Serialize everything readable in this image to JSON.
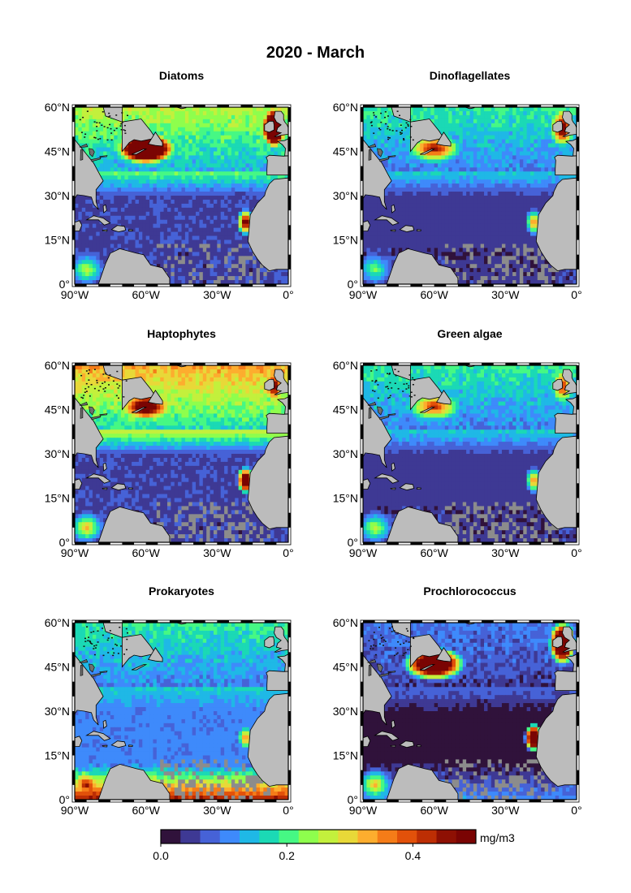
{
  "title": "2020 - March",
  "panels": [
    {
      "name": "Diatoms",
      "bloom": {
        "nw": 1.0,
        "ne": 1.0,
        "mid": 0.22,
        "sub": 0.06,
        "eq": 0.06,
        "canary": 0.55,
        "west_eq": 0.25
      }
    },
    {
      "name": "Dinoflagellates",
      "bloom": {
        "nw": 0.45,
        "ne": 0.55,
        "mid": 0.16,
        "sub": 0.05,
        "eq": 0.05,
        "canary": 0.35,
        "west_eq": 0.2
      }
    },
    {
      "name": "Haptophytes",
      "bloom": {
        "nw": 0.6,
        "ne": 0.5,
        "mid": 0.28,
        "sub": 0.06,
        "eq": 0.06,
        "canary": 0.75,
        "west_eq": 0.3
      }
    },
    {
      "name": "Green algae",
      "bloom": {
        "nw": 0.4,
        "ne": 0.4,
        "mid": 0.16,
        "sub": 0.05,
        "eq": 0.05,
        "canary": 0.35,
        "west_eq": 0.25
      }
    },
    {
      "name": "Prokaryotes",
      "bloom": {
        "nw": 0.12,
        "ne": 0.12,
        "mid": 0.16,
        "sub": 0.1,
        "eq": 0.45,
        "canary": 0.35,
        "west_eq": 0.45
      }
    },
    {
      "name": "Prochlorococcus",
      "bloom": {
        "nw": 0.85,
        "ne": 0.9,
        "mid": 0.08,
        "sub": 0.02,
        "eq": 0.12,
        "canary": 0.9,
        "west_eq": 0.3
      }
    }
  ],
  "axes": {
    "lon_ticks": [
      "90°W",
      "60°W",
      "30°W",
      "0°"
    ],
    "lat_ticks": [
      "60°N",
      "45°N",
      "30°N",
      "15°N",
      "0°"
    ],
    "lon_range": [
      -90,
      0
    ],
    "lat_range": [
      0,
      60
    ]
  },
  "colorbar": {
    "unit": "mg/m3",
    "range": [
      0.0,
      0.5
    ],
    "ticks": [
      "0.0",
      "0.2",
      "0.4"
    ],
    "tick_values": [
      0.0,
      0.2,
      0.4
    ]
  },
  "colors": {
    "land": "#bcbcbc",
    "lake": "#6e6e6e",
    "nodata": "#8c8c8c",
    "scale": [
      "#30123b",
      "#3e3994",
      "#4662d7",
      "#3e8afb",
      "#1fb8e6",
      "#1bd9b5",
      "#46f884",
      "#8efe4d",
      "#c3f03c",
      "#e8d838",
      "#fdad2e",
      "#f57c18",
      "#e2510a",
      "#bd2e04",
      "#8e1003",
      "#7a0403"
    ]
  }
}
